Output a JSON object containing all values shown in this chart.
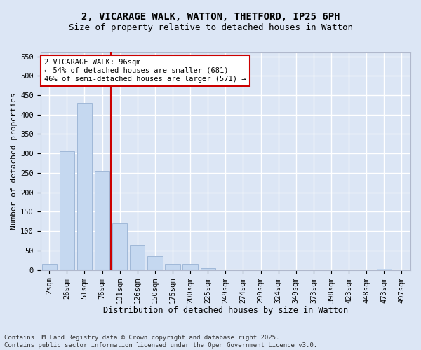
{
  "title1": "2, VICARAGE WALK, WATTON, THETFORD, IP25 6PH",
  "title2": "Size of property relative to detached houses in Watton",
  "xlabel": "Distribution of detached houses by size in Watton",
  "ylabel": "Number of detached properties",
  "footer1": "Contains HM Land Registry data © Crown copyright and database right 2025.",
  "footer2": "Contains public sector information licensed under the Open Government Licence v3.0.",
  "categories": [
    "2sqm",
    "26sqm",
    "51sqm",
    "76sqm",
    "101sqm",
    "126sqm",
    "150sqm",
    "175sqm",
    "200sqm",
    "225sqm",
    "249sqm",
    "274sqm",
    "299sqm",
    "324sqm",
    "349sqm",
    "373sqm",
    "398sqm",
    "423sqm",
    "448sqm",
    "473sqm",
    "497sqm"
  ],
  "values": [
    15,
    305,
    430,
    255,
    120,
    65,
    35,
    15,
    15,
    5,
    0,
    0,
    0,
    0,
    0,
    0,
    0,
    0,
    0,
    3,
    0
  ],
  "bar_color": "#c5d8f0",
  "bar_edge_color": "#a0b8d8",
  "plot_bg_color": "#dce6f5",
  "fig_bg_color": "#dce6f5",
  "grid_color": "#ffffff",
  "vline_x": 3.5,
  "vline_color": "#cc0000",
  "annotation_text": "2 VICARAGE WALK: 96sqm\n← 54% of detached houses are smaller (681)\n46% of semi-detached houses are larger (571) →",
  "annotation_box_color": "#cc0000",
  "ylim": [
    0,
    560
  ],
  "yticks": [
    0,
    50,
    100,
    150,
    200,
    250,
    300,
    350,
    400,
    450,
    500,
    550
  ],
  "title1_fontsize": 10,
  "title2_fontsize": 9,
  "xlabel_fontsize": 8.5,
  "ylabel_fontsize": 8,
  "tick_fontsize": 7.5,
  "footer_fontsize": 6.5,
  "annot_fontsize": 7.5
}
